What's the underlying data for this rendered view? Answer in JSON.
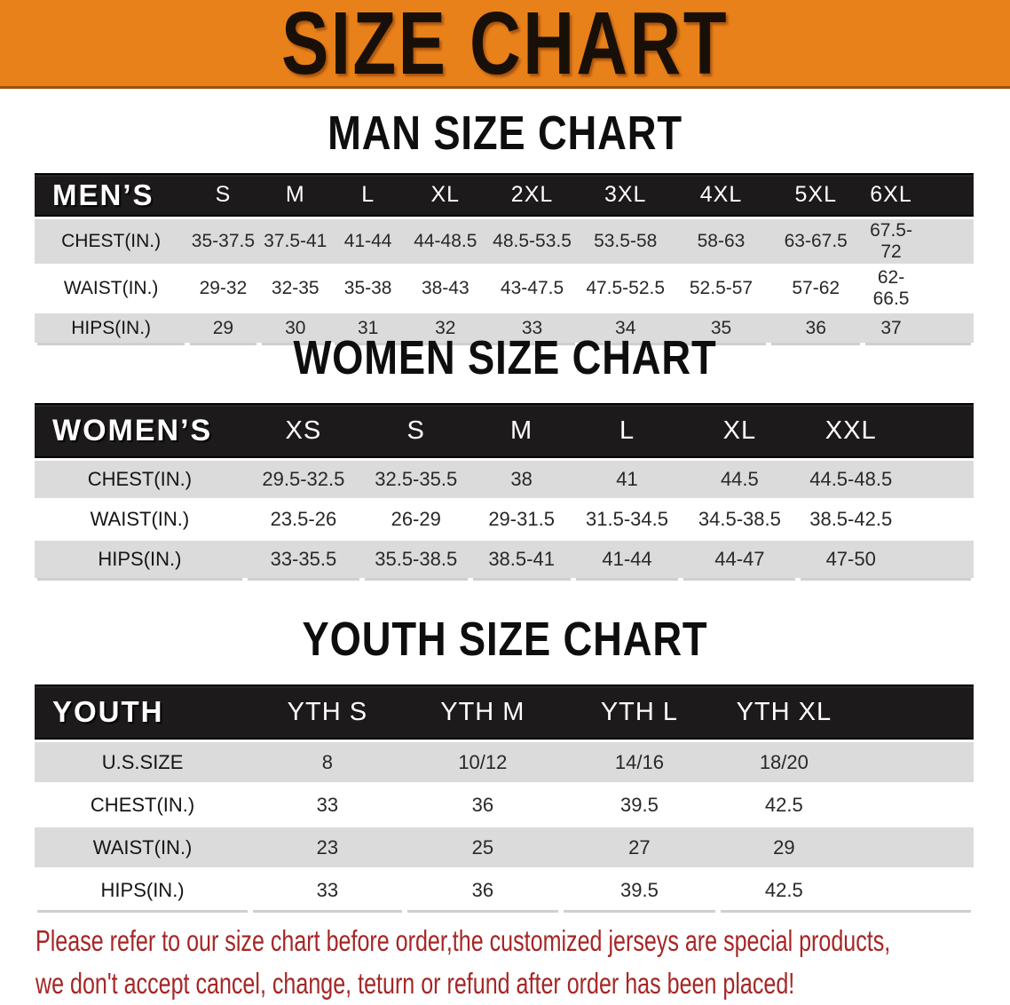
{
  "banner": {
    "title": "SIZE CHART"
  },
  "sections": [
    {
      "id": "man",
      "heading": "MAN SIZE CHART",
      "table": {
        "header": [
          "MEN’S",
          "S",
          "M",
          "L",
          "XL",
          "2XL",
          "3XL",
          "4XL",
          "5XL",
          "6XL"
        ],
        "rows": [
          {
            "label": "CHEST(IN.)",
            "values": [
              "35-37.5",
              "37.5-41",
              "41-44",
              "44-48.5",
              "48.5-53.5",
              "53.5-58",
              "58-63",
              "63-67.5",
              "67.5-72"
            ]
          },
          {
            "label": "WAIST(IN.)",
            "values": [
              "29-32",
              "32-35",
              "35-38",
              "38-43",
              "43-47.5",
              "47.5-52.5",
              "52.5-57",
              "57-62",
              "62-66.5"
            ]
          },
          {
            "label": "HIPS(IN.)",
            "values": [
              "29",
              "30",
              "31",
              "32",
              "33",
              "34",
              "35",
              "36",
              "37"
            ]
          }
        ]
      }
    },
    {
      "id": "women",
      "heading": "WOMEN SIZE CHART",
      "table": {
        "header": [
          "WOMEN’S",
          "XS",
          "S",
          "M",
          "L",
          "XL",
          "XXL"
        ],
        "rows": [
          {
            "label": "CHEST(IN.)",
            "values": [
              "29.5-32.5",
              "32.5-35.5",
              "38",
              "41",
              "44.5",
              "44.5-48.5"
            ]
          },
          {
            "label": "WAIST(IN.)",
            "values": [
              "23.5-26",
              "26-29",
              "29-31.5",
              "31.5-34.5",
              "34.5-38.5",
              "38.5-42.5"
            ]
          },
          {
            "label": "HIPS(IN.)",
            "values": [
              "33-35.5",
              "35.5-38.5",
              "38.5-41",
              "41-44",
              "44-47",
              "47-50"
            ]
          }
        ]
      }
    },
    {
      "id": "youth",
      "heading": "YOUTH SIZE CHART",
      "table": {
        "header": [
          "YOUTH",
          "YTH S",
          "YTH M",
          "YTH L",
          "YTH XL"
        ],
        "rows": [
          {
            "label": "U.S.SIZE",
            "values": [
              "8",
              "10/12",
              "14/16",
              "18/20"
            ]
          },
          {
            "label": "CHEST(IN.)",
            "values": [
              "33",
              "36",
              "39.5",
              "42.5"
            ]
          },
          {
            "label": "WAIST(IN.)",
            "values": [
              "23",
              "25",
              "27",
              "29"
            ]
          },
          {
            "label": "HIPS(IN.)",
            "values": [
              "33",
              "36",
              "39.5",
              "42.5"
            ]
          }
        ]
      }
    }
  ],
  "disclaimer": {
    "line1": "Please refer to our size chart before order,the customized jerseys are special products,",
    "line2": "we don't accept cancel, change, teturn or refund after order has been placed!"
  },
  "colors": {
    "banner_bg": "#e8811a",
    "banner_border": "#9a5210",
    "banner_text": "#181008",
    "heading": "#0e0e0e",
    "header_bar": "#1c1a1a",
    "row_shade": "#dbdbdb",
    "table_text": "#282828",
    "disclaimer": "#a62626"
  }
}
